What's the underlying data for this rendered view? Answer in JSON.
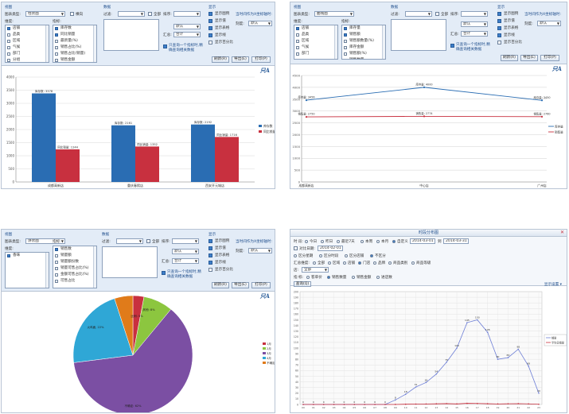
{
  "colors": {
    "blue": "#2a6db3",
    "red": "#c8303f",
    "green": "#8cc63f",
    "purple": "#7b4fa3",
    "teal": "#2fa7d6"
  },
  "common": {
    "view_label": "视图",
    "chart_type_label": "图表类型:",
    "horizontal_label": "横向",
    "dimension_label": "维度:",
    "indicator_label": "指标:",
    "data_label": "数据",
    "filter_label": "过滤:",
    "all_label": "全部",
    "sort_label": "排序:",
    "sort_value": "默认",
    "aggregate_label": "汇总:",
    "aggregate_value": "合计",
    "combine_text": "只查询一个指标时,精确查询相关数据",
    "display_label": "显示",
    "opts": [
      "显示图例",
      "显示值",
      "显示表格",
      "显示线",
      "显示百分比"
    ],
    "multi_note": "当时间作为X坐标轴时:",
    "precision_label": "刻度:",
    "precision_value": "默认",
    "refresh_btn": "刷新(R)",
    "export_btn": "导出(E)",
    "print_btn": "打印(P)",
    "logo": "只A"
  },
  "panel1": {
    "chart_type": "柱状图",
    "dims": [
      "店铺",
      "品类",
      "区域",
      "气候",
      "部门",
      "分组"
    ],
    "inds": [
      "库存数",
      "同比销量",
      "最新量(%)",
      "销售占比(%)",
      "销售占比(销量)",
      "销售金额"
    ],
    "chart_data": {
      "type": "bar",
      "categories": [
        "成都高新店",
        "重庆春熙店",
        "西安开元城店"
      ],
      "series": [
        {
          "name": "库存数",
          "values": [
            3378,
            2161,
            2192
          ]
        },
        {
          "name": "同比销量",
          "values": [
            1244,
            1352,
            1716
          ]
        }
      ],
      "data_labels": [
        [
          "库存数: 3378",
          "同比销量: 1244"
        ],
        [
          "库存数: 2161",
          "同比销量: 1352"
        ],
        [
          "库存数: 2192",
          "同比销量: 1716"
        ]
      ],
      "ylim": [
        0,
        4000
      ],
      "yticks": [
        "0",
        "500",
        "1000",
        "1500",
        "2000",
        "2500",
        "3000",
        "3500",
        "4000"
      ],
      "legend": [
        "库存数",
        "同比销量"
      ]
    }
  },
  "panel2": {
    "chart_type": "曲线图",
    "dims": [
      "店铺",
      "品类",
      "区域",
      "气候",
      "部门"
    ],
    "inds": [
      "库存量",
      "销售额",
      "销售额数量(%)",
      "库存金额",
      "销售额(%)",
      "销售数量"
    ],
    "chart_data": {
      "type": "line",
      "categories": [
        "成都高新店",
        "中心店",
        "广州店"
      ],
      "series": [
        {
          "name": "库存量",
          "values": [
            3456,
            4000,
            3450
          ]
        },
        {
          "name": "销售量",
          "values": [
            2750,
            2774,
            2760
          ]
        }
      ],
      "data_labels": [
        [
          "库存量: 3456",
          "库存量: 4000",
          "库存量: 3450"
        ],
        [
          "销售量: 2750",
          "销售量: 2774",
          "销售量: 2760"
        ]
      ],
      "ylim": [
        0,
        4500
      ],
      "yticks": [
        "0",
        "500",
        "1000",
        "1500",
        "2000",
        "2500",
        "3000",
        "3500",
        "4000",
        "4500"
      ],
      "legend": [
        "库存量",
        "销售量"
      ]
    }
  },
  "panel3": {
    "chart_type": "饼状图",
    "dims": [
      "香味"
    ],
    "inds": [
      "销售数",
      "销量额",
      "销量额份数",
      "销量可售占比(%)",
      "金额可售占比(%)",
      "可售占比"
    ],
    "chart_data": {
      "type": "pie",
      "slices": [
        {
          "name": "1",
          "value": 3
        },
        {
          "name": "2",
          "value": 8
        },
        {
          "name": "3",
          "value": 62
        },
        {
          "name": "4",
          "value": 22
        },
        {
          "name": "5",
          "value": 5
        }
      ],
      "data_labels": [
        "不确定: 62%",
        "火鸡面, 22%",
        "其他: 8%",
        "比例: 5%"
      ],
      "legend": [
        "1月",
        "2月",
        "3月",
        "4月",
        "不确定"
      ]
    }
  },
  "panel4": {
    "title": "时段分布图",
    "period_label": "时 段:",
    "period_opts": [
      "今日",
      "昨日",
      "最近7天",
      "本周",
      "本月",
      "自定义"
    ],
    "date_from": "2014-03-01",
    "date_to": "2014-03-31",
    "to_label": "到",
    "compare_label": "对比日期:",
    "compare_value": "2014-02-01",
    "split_opts": [
      "区分星期",
      "区分时段",
      "区分店铺",
      "不区分"
    ],
    "sum_label": "汇总维度:",
    "sum_opts": [
      "全部",
      "区域",
      "店铺",
      "门店",
      "品牌",
      "商品类别",
      "商品等级"
    ],
    "shop_label": "店:",
    "shop_value": "全部",
    "ind_label": "指 标:",
    "ind_opts": [
      "客单价",
      "销售数量",
      "销售金额",
      "进店数"
    ],
    "query_btn": "查询(Q)",
    "more_btn": "显示设置 ▾",
    "chart_data": {
      "type": "line",
      "x": [
        "00:00",
        "01:00",
        "02:00",
        "03:00",
        "04:00",
        "05:00",
        "06:00",
        "07:00",
        "08:00",
        "09:00",
        "10:00",
        "11:00",
        "12:00",
        "13:00",
        "14:00",
        "15:00",
        "16:00",
        "17:00",
        "18:00",
        "19:00",
        "20:00",
        "21:00",
        "22:00",
        "23:00"
      ],
      "series": [
        {
          "name": "销量",
          "values": [
            0,
            0,
            0,
            0,
            0,
            0,
            0,
            0,
            0,
            8,
            18,
            31,
            39,
            54,
            75,
            100,
            145,
            150,
            128,
            80,
            83,
            98,
            68,
            20
          ]
        },
        {
          "name": "平均日销量",
          "values": [
            0,
            0,
            0,
            0,
            0,
            0,
            0,
            0,
            0,
            0.05,
            0.44,
            0.69,
            0.89,
            1.13,
            1.5,
            1.0,
            2.0,
            1.73,
            1.3,
            0.91,
            1.2,
            1.44,
            1.03,
            0.35
          ]
        }
      ],
      "data_labels": [
        "0",
        "0",
        "0",
        "0",
        "0",
        "0",
        "0",
        "0",
        "0",
        "8",
        "18",
        "31",
        "39",
        "54",
        "75",
        "100",
        "145",
        "150",
        "128",
        "80",
        "83",
        "98",
        "68",
        "20"
      ],
      "ylim": [
        0,
        200
      ],
      "yticks": [
        "0",
        "10",
        "20",
        "30",
        "40",
        "50",
        "60",
        "70",
        "80",
        "90",
        "100",
        "110",
        "120",
        "130",
        "140",
        "150",
        "160",
        "170",
        "180",
        "190",
        "200"
      ],
      "legend": [
        "销量",
        "平均日销量"
      ]
    }
  }
}
